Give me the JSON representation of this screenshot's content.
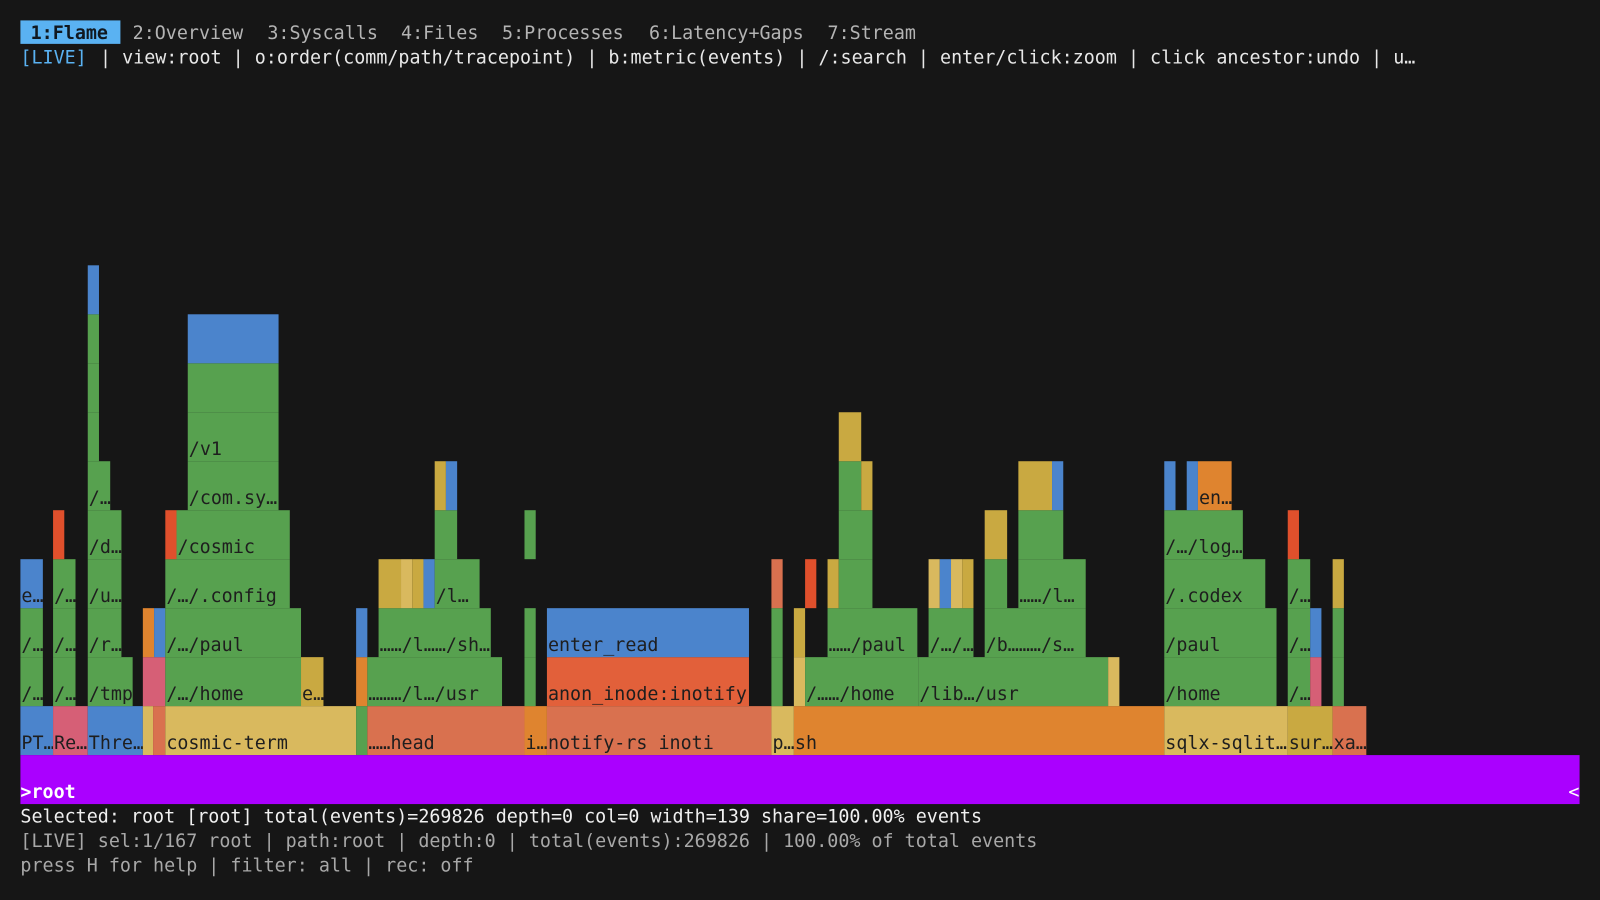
{
  "tabs": [
    "1:Flame",
    "2:Overview",
    "3:Syscalls",
    "4:Files",
    "5:Processes",
    "6:Latency+Gaps",
    "7:Stream"
  ],
  "live_badge": "[LIVE]",
  "hint_line": "| view:root | o:order(comm/path/tracepoint) | b:metric(events) | /:search | enter/click:zoom | click ancestor:undo | u…",
  "flame": {
    "frames": [
      "PT…",
      "Re…",
      "Thre…",
      "cosmic-term",
      "……head",
      "i…",
      "notify-rs inoti",
      "p…",
      "sh",
      "sqlx-sqlit…",
      "sur…",
      "xa…",
      "/…",
      "/…",
      "/tmp",
      "/…/home",
      "e…",
      "………/l…/usr",
      "anon_inode:inotify",
      "/……/home",
      "/lib…/usr",
      "/home",
      "/…",
      "/…",
      "/…",
      "/r…",
      "/…/paul",
      "……/l……/sh…",
      "enter_read",
      "……/paul",
      "/…/…",
      "/b………/s…",
      "/paul",
      "/…",
      "e…",
      "/…",
      "/u…",
      "/…/.config",
      "/l…",
      "……/l…",
      "/.codex",
      "/…",
      "/d…",
      "/cosmic",
      "/…/log…",
      "/…",
      "/com.sy…",
      "en…",
      "/v1"
    ],
    "root": ">root",
    "root_marker": "<"
  },
  "status": {
    "selected": "Selected: root [root] total(events)=269826 depth=0 col=0 width=139 share=100.00% events",
    "summary": "[LIVE] sel:1/167 root | path:root | depth:0 | total(events):269826 | 100.00% of total events",
    "footer": "press H for help | filter: all | rec: off"
  }
}
